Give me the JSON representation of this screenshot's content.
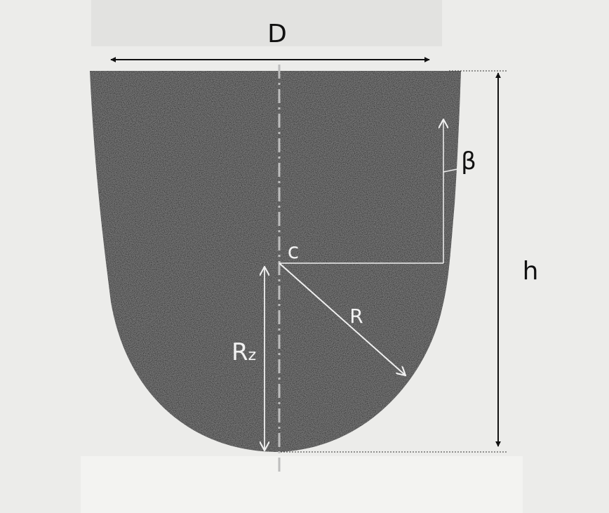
{
  "labels": {
    "diameter": "D",
    "height": "h",
    "angle": "β",
    "center": "c",
    "radius": "R",
    "radius_z_main": "R",
    "radius_z_sub": "z"
  },
  "colors": {
    "background": "#ececea",
    "body": "#2b2b2c",
    "dark_line": "#111111",
    "light_line": "#f0f0f0",
    "axis": "#bdbdbd"
  }
}
